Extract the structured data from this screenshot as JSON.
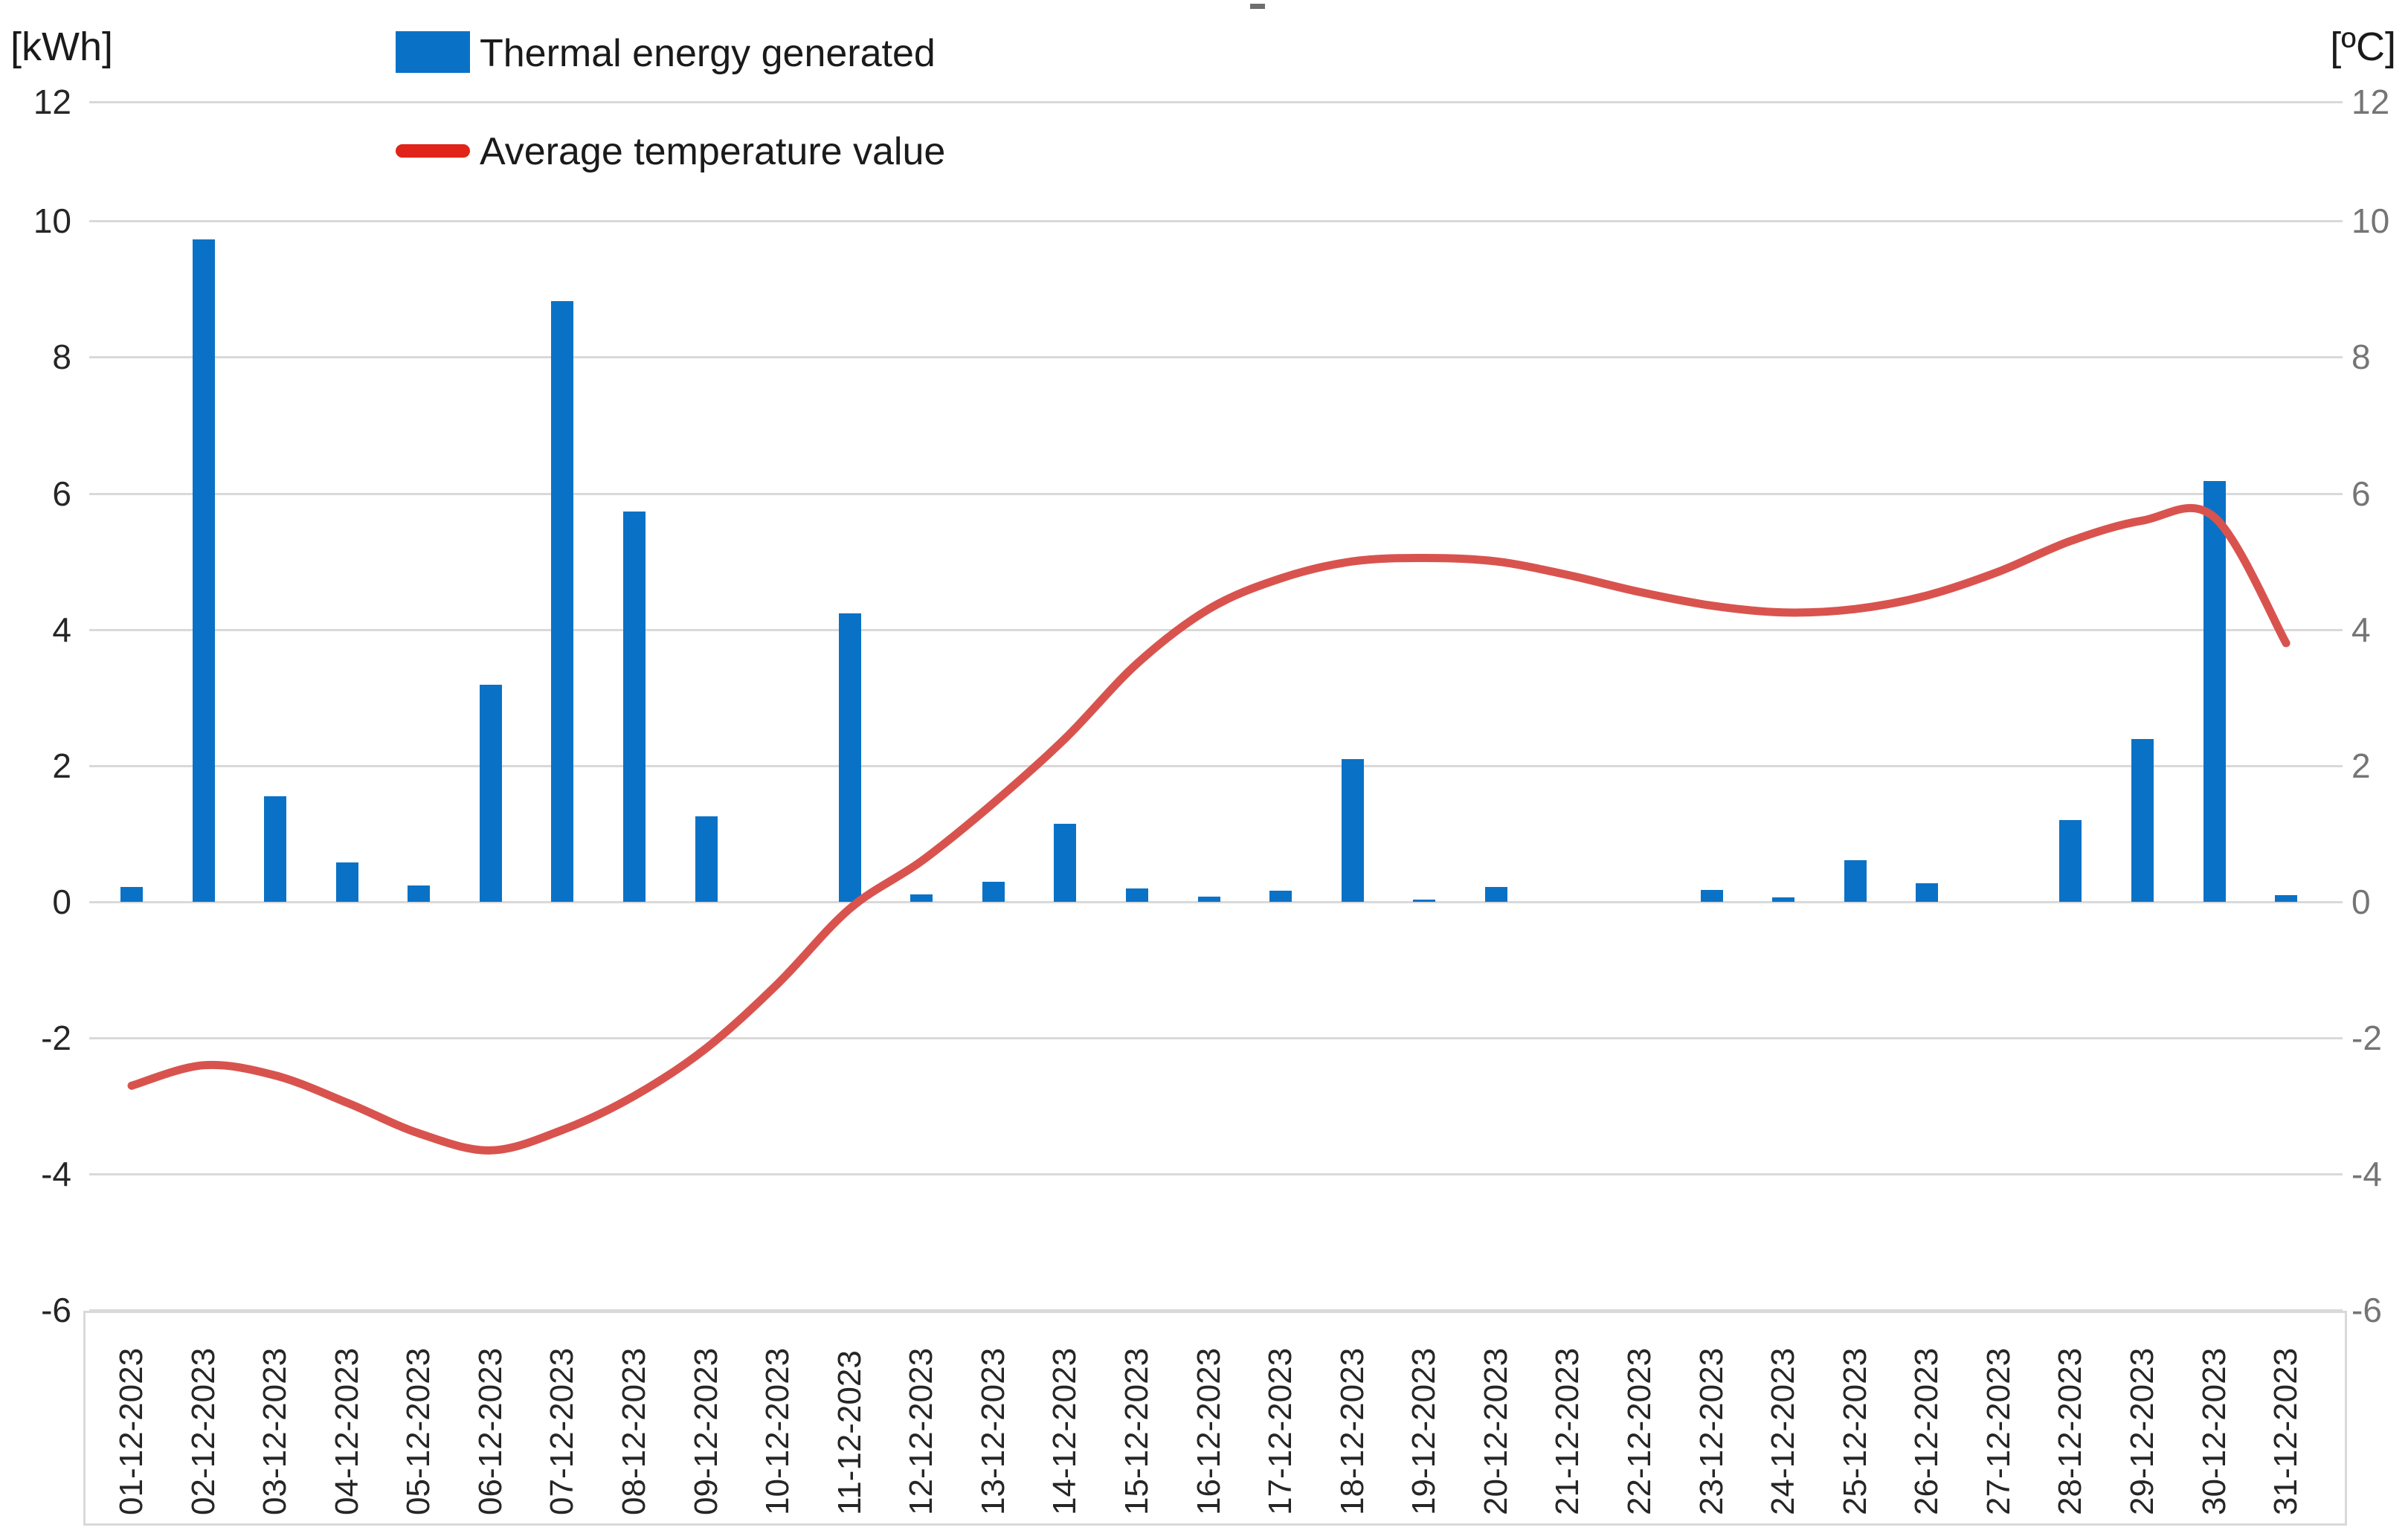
{
  "axes": {
    "left": {
      "unit_label": "[kWh]",
      "ticks": [
        12,
        10,
        8,
        6,
        4,
        2,
        0,
        -2,
        -4,
        -6
      ]
    },
    "right": {
      "unit_label": "[ºC]",
      "ticks": [
        12,
        10,
        8,
        6,
        4,
        2,
        0,
        -2,
        -4,
        -6
      ]
    }
  },
  "legend": {
    "items": [
      {
        "label": "Thermal energy generated",
        "marker": "bar-swatch",
        "color": "#0a72c6"
      },
      {
        "label": "Average temperature value",
        "marker": "line-swatch",
        "color": "#e02419"
      }
    ]
  },
  "colors": {
    "bar": "#0a72c6",
    "line": "#d9534e",
    "gridline": "#d9d9d9",
    "left_tick_text": "#262626",
    "right_tick_text": "#757575"
  },
  "chart_data": {
    "type": "combo-bar-line",
    "title": "",
    "categories": [
      "01-12-2023",
      "02-12-2023",
      "03-12-2023",
      "04-12-2023",
      "05-12-2023",
      "06-12-2023",
      "07-12-2023",
      "08-12-2023",
      "09-12-2023",
      "10-12-2023",
      "11-12-2023",
      "12-12-2023",
      "13-12-2023",
      "14-12-2023",
      "15-12-2023",
      "16-12-2023",
      "17-12-2023",
      "18-12-2023",
      "19-12-2023",
      "20-12-2023",
      "21-12-2023",
      "22-12-2023",
      "23-12-2023",
      "24-12-2023",
      "25-12-2023",
      "26-12-2023",
      "27-12-2023",
      "28-12-2023",
      "29-12-2023",
      "30-12-2023",
      "31-12-2023"
    ],
    "series": [
      {
        "name": "Thermal energy generated",
        "type": "bar",
        "axis": "left",
        "unit": "kWh",
        "color": "#0a72c6",
        "values": [
          0.22,
          9.73,
          1.55,
          0.58,
          0.24,
          3.19,
          8.82,
          5.73,
          1.26,
          0,
          4.24,
          0.11,
          0.29,
          1.15,
          0.2,
          0.08,
          0.16,
          2.1,
          0.03,
          0.22,
          0,
          0,
          0.17,
          0.07,
          0.61,
          0.27,
          0,
          1.2,
          2.39,
          6.18,
          0.1
        ]
      },
      {
        "name": "Average temperature value",
        "type": "line",
        "axis": "right",
        "unit": "°C",
        "color": "#d9534e",
        "values": [
          -2.7,
          -2.4,
          -2.55,
          -2.95,
          -3.4,
          -3.65,
          -3.35,
          -2.85,
          -2.15,
          -1.2,
          -0.1,
          0.6,
          1.45,
          2.4,
          3.5,
          4.3,
          4.75,
          5.0,
          5.05,
          5.0,
          4.8,
          4.55,
          4.35,
          4.25,
          4.3,
          4.5,
          4.85,
          5.3,
          5.6,
          5.65,
          3.8
        ]
      }
    ],
    "ylim": [
      -6,
      12
    ],
    "y_tick_step": 2,
    "grid": true,
    "legend_position": "top-left"
  }
}
